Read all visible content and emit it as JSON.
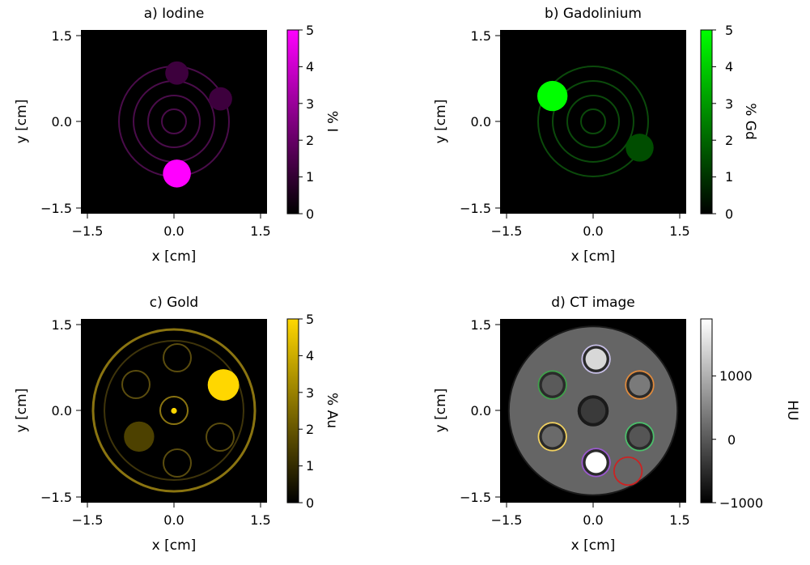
{
  "chart_data": [
    {
      "type": "heatmap",
      "title": "a) Iodine",
      "xlabel": "x [cm]",
      "ylabel": "y [cm]",
      "xlim": [
        -1.6,
        1.6
      ],
      "ylim": [
        -1.6,
        1.6
      ],
      "xticks": [
        "−1.5",
        "0.0",
        "1.5"
      ],
      "yticks": [
        "1.5",
        "0.0",
        "−1.5"
      ],
      "colorbar": {
        "label": "% I",
        "min": 0,
        "max": 5,
        "ticks": [
          "0",
          "1",
          "2",
          "3",
          "4",
          "5"
        ],
        "color_low": "#000000",
        "color_high": "#ff00ff"
      },
      "features": [
        {
          "name": "high-concentration vial",
          "x": 0.05,
          "y": -0.9,
          "r": 0.24,
          "value": 5
        },
        {
          "name": "vial",
          "x": 0.05,
          "y": 0.85,
          "r": 0.2,
          "value": 1.2
        },
        {
          "name": "vial",
          "x": 0.8,
          "y": 0.4,
          "r": 0.2,
          "value": 1.2
        }
      ]
    },
    {
      "type": "heatmap",
      "title": "b) Gadolinium",
      "xlabel": "x [cm]",
      "ylabel": "y [cm]",
      "xlim": [
        -1.6,
        1.6
      ],
      "ylim": [
        -1.6,
        1.6
      ],
      "xticks": [
        "−1.5",
        "0.0",
        "1.5"
      ],
      "yticks": [
        "1.5",
        "0.0",
        "−1.5"
      ],
      "colorbar": {
        "label": "% Gd",
        "min": 0,
        "max": 5,
        "ticks": [
          "0",
          "1",
          "2",
          "3",
          "4",
          "5"
        ],
        "color_low": "#000000",
        "color_high": "#00ff00"
      },
      "features": [
        {
          "name": "high-concentration vial",
          "x": -0.7,
          "y": 0.45,
          "r": 0.26,
          "value": 5
        },
        {
          "name": "vial",
          "x": 0.8,
          "y": -0.45,
          "r": 0.24,
          "value": 1.5
        }
      ]
    },
    {
      "type": "heatmap",
      "title": "c) Gold",
      "xlabel": "x [cm]",
      "ylabel": "y [cm]",
      "xlim": [
        -1.6,
        1.6
      ],
      "ylim": [
        -1.6,
        1.6
      ],
      "xticks": [
        "−1.5",
        "0.0",
        "1.5"
      ],
      "yticks": [
        "1.5",
        "0.0",
        "−1.5"
      ],
      "colorbar": {
        "label": "% Au",
        "min": 0,
        "max": 5,
        "ticks": [
          "0",
          "1",
          "2",
          "3",
          "4",
          "5"
        ],
        "color_low": "#000000",
        "color_high": "#ffd700"
      },
      "features": [
        {
          "name": "high-concentration vial",
          "x": 0.85,
          "y": 0.45,
          "r": 0.27,
          "value": 5
        },
        {
          "name": "vial",
          "x": -0.6,
          "y": -0.45,
          "r": 0.26,
          "value": 1.5
        },
        {
          "name": "center spot",
          "x": 0.0,
          "y": 0.0,
          "r": 0.05,
          "value": 5
        }
      ]
    },
    {
      "type": "heatmap",
      "title": "d) CT image",
      "xlabel": "x [cm]",
      "ylabel": "y [cm]",
      "xlim": [
        -1.6,
        1.6
      ],
      "ylim": [
        -1.6,
        1.6
      ],
      "xticks": [
        "−1.5",
        "0.0",
        "1.5"
      ],
      "yticks": [
        "1.5",
        "0.0",
        "−1.5"
      ],
      "colorbar": {
        "label": "HU",
        "min": -1000,
        "max": 1900,
        "ticks": [
          "−1000",
          "0",
          "1000"
        ],
        "color_low": "#000000",
        "color_high": "#ffffff"
      },
      "features": [
        {
          "name": "phantom body",
          "x": 0.0,
          "y": 0.0,
          "r": 1.45,
          "value": 150
        },
        {
          "name": "vial",
          "x": 0.05,
          "y": 0.9,
          "r": 0.24,
          "ring": "#c8c0e8"
        },
        {
          "name": "vial",
          "x": 0.8,
          "y": 0.45,
          "r": 0.24,
          "ring": "#e08a3c"
        },
        {
          "name": "vial",
          "x": 0.8,
          "y": -0.45,
          "r": 0.24,
          "ring": "#4bbf6b"
        },
        {
          "name": "vial",
          "x": 0.05,
          "y": -0.9,
          "r": 0.24,
          "ring": "#9b59d0"
        },
        {
          "name": "vial",
          "x": -0.7,
          "y": -0.45,
          "r": 0.24,
          "ring": "#f0d060"
        },
        {
          "name": "vial",
          "x": -0.7,
          "y": 0.45,
          "r": 0.24,
          "ring": "#3fa04a"
        },
        {
          "name": "center vial",
          "x": 0.0,
          "y": 0.0,
          "r": 0.24
        },
        {
          "name": "roi",
          "x": 0.6,
          "y": -1.05,
          "r": 0.24,
          "ring": "#cc2222"
        }
      ]
    }
  ]
}
